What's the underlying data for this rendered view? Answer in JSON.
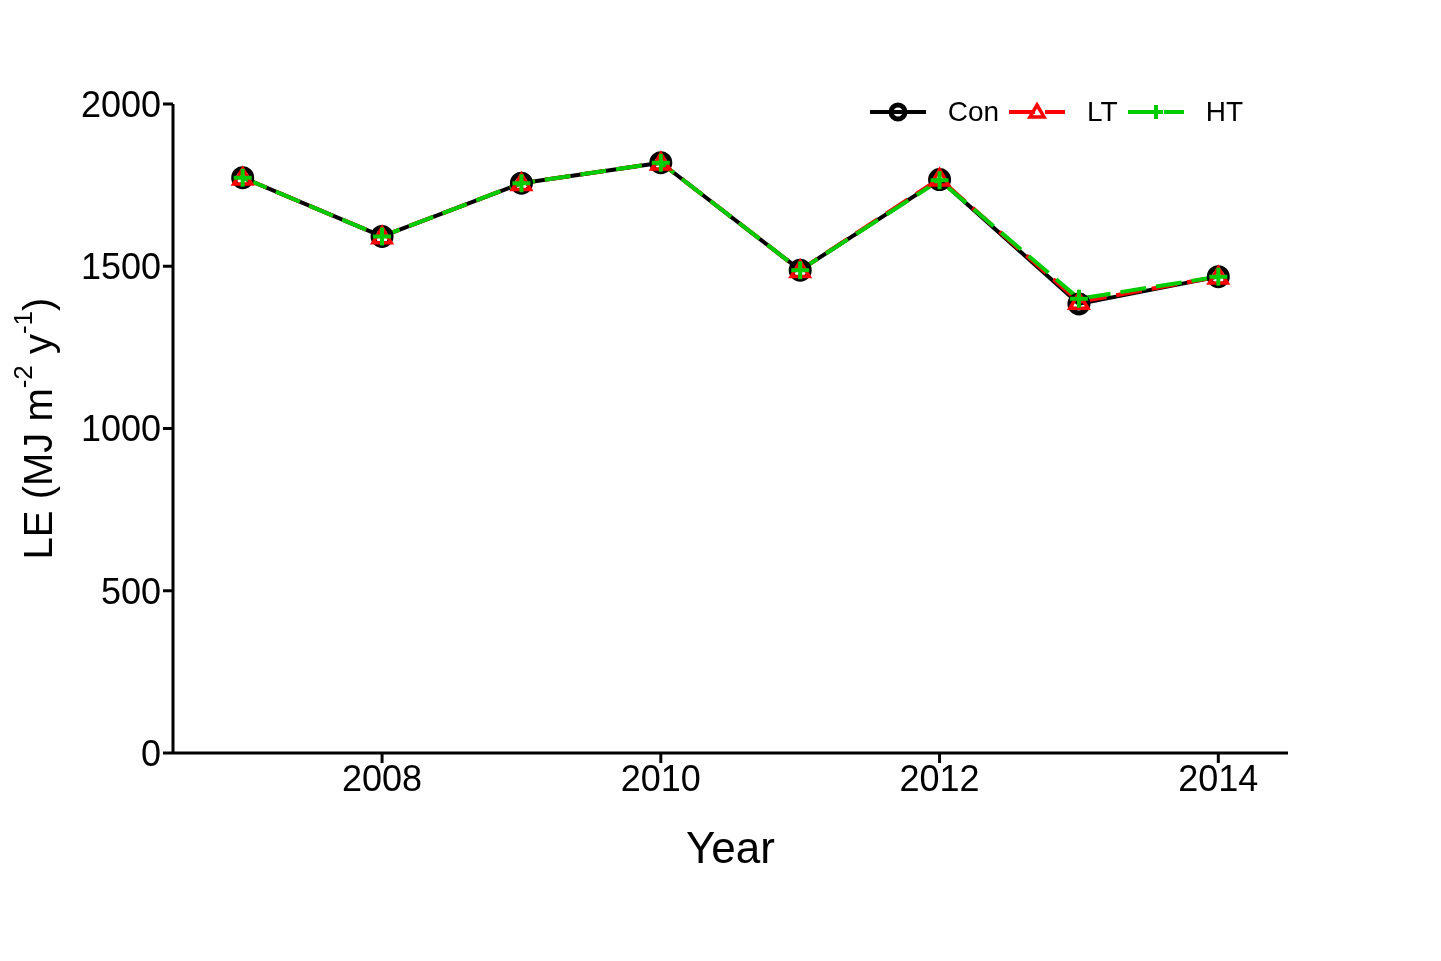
{
  "chart_data": {
    "type": "line",
    "xlabel": "Year",
    "ylabel": "LE (MJ m$^{-2}$ y$^{-1}$)",
    "x": [
      2007,
      2008,
      2009,
      2010,
      2011,
      2012,
      2013,
      2014
    ],
    "series": [
      {
        "name": "Con",
        "color": "#000000",
        "marker": "circle",
        "line_style": "solid",
        "values": [
          1773,
          1592,
          1756,
          1819,
          1488,
          1767,
          1384,
          1468
        ]
      },
      {
        "name": "LT",
        "color": "#ff0000",
        "marker": "triangle",
        "line_style": "dashed",
        "values": [
          1773,
          1592,
          1756,
          1819,
          1488,
          1770,
          1390,
          1468
        ]
      },
      {
        "name": "HT",
        "color": "#00cc00",
        "marker": "cross",
        "line_style": "dashed",
        "values": [
          1773,
          1592,
          1756,
          1819,
          1488,
          1765,
          1400,
          1468
        ]
      }
    ],
    "xlim": [
      2006.5,
      2014.5
    ],
    "xticks": [
      2008,
      2010,
      2012,
      2014
    ],
    "ylim": [
      0,
      2000
    ],
    "yticks": [
      0,
      500,
      1000,
      1500,
      2000
    ],
    "grid": false,
    "legend": "top right"
  }
}
